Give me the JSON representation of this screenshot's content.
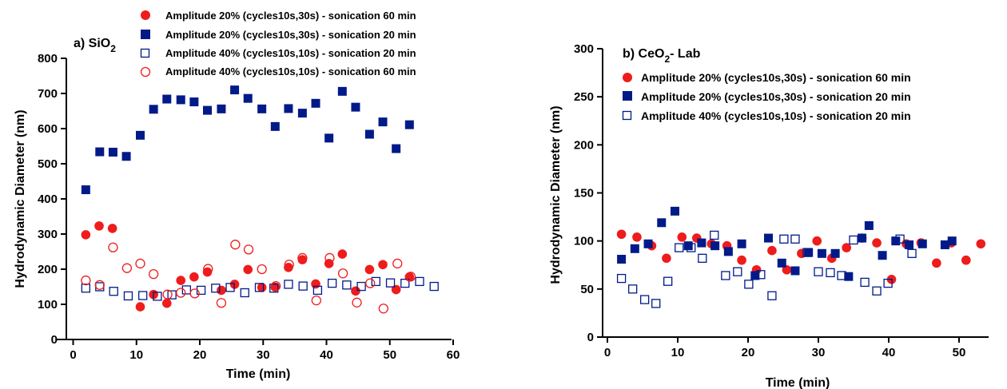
{
  "chart_data": [
    {
      "type": "scatter",
      "title_prefix": "a) SiO",
      "title_sub": "2",
      "title_suffix": "",
      "xlabel": "Time (min)",
      "ylabel": "Hydrodynamic Diameter (nm)",
      "xlim": [
        0,
        60
      ],
      "ylim": [
        0,
        800
      ],
      "xticks": [
        0,
        10,
        20,
        30,
        40,
        50,
        60
      ],
      "yticks": [
        0,
        100,
        200,
        300,
        400,
        500,
        600,
        700,
        800
      ],
      "grid": false,
      "legend_position": "top",
      "series": [
        {
          "name": "Amplitude 20% (cycles10s,30s) - sonication 60 min",
          "marker": "circle-filled",
          "color": "#ee1c1c",
          "points": [
            [
              2,
              298
            ],
            [
              4.1,
              323
            ],
            [
              6.2,
              316
            ],
            [
              10.6,
              93
            ],
            [
              12.7,
              128
            ],
            [
              14.8,
              103
            ],
            [
              17,
              168
            ],
            [
              19.1,
              178
            ],
            [
              21.2,
              192
            ],
            [
              23.4,
              140
            ],
            [
              25.5,
              157
            ],
            [
              27.6,
              199
            ],
            [
              29.8,
              148
            ],
            [
              31.9,
              149
            ],
            [
              34,
              205
            ],
            [
              36.2,
              227
            ],
            [
              38.3,
              158
            ],
            [
              40.4,
              216
            ],
            [
              42.5,
              243
            ],
            [
              44.6,
              138
            ],
            [
              46.8,
              199
            ],
            [
              48.9,
              213
            ],
            [
              51,
              142
            ],
            [
              53.1,
              178
            ]
          ]
        },
        {
          "name": "Amplitude 20% (cycles10s,30s) - sonication 20 min",
          "marker": "square-filled",
          "color": "#001a88",
          "points": [
            [
              2,
              426
            ],
            [
              4.2,
              534
            ],
            [
              6.3,
              533
            ],
            [
              8.4,
              521
            ],
            [
              10.6,
              581
            ],
            [
              12.7,
              655
            ],
            [
              14.8,
              684
            ],
            [
              17,
              682
            ],
            [
              19.1,
              676
            ],
            [
              21.2,
              652
            ],
            [
              23.4,
              656
            ],
            [
              25.5,
              710
            ],
            [
              27.6,
              686
            ],
            [
              29.8,
              656
            ],
            [
              31.9,
              606
            ],
            [
              34,
              657
            ],
            [
              36.2,
              644
            ],
            [
              38.3,
              672
            ],
            [
              40.4,
              573
            ],
            [
              42.5,
              706
            ],
            [
              44.6,
              661
            ],
            [
              46.8,
              584
            ],
            [
              48.9,
              619
            ],
            [
              51,
              543
            ],
            [
              53.1,
              611
            ]
          ]
        },
        {
          "name": "Amplitude 40% (cycles10s,10s) - sonication 20 min",
          "marker": "square-open",
          "color": "#001a88",
          "points": [
            [
              2,
              146
            ],
            [
              4.2,
              150
            ],
            [
              6.4,
              137
            ],
            [
              8.7,
              124
            ],
            [
              11,
              125
            ],
            [
              13.3,
              123
            ],
            [
              15.6,
              127
            ],
            [
              17.9,
              141
            ],
            [
              20.2,
              140
            ],
            [
              22.5,
              146
            ],
            [
              24.8,
              148
            ],
            [
              27.1,
              133
            ],
            [
              29.4,
              148
            ],
            [
              31.7,
              146
            ],
            [
              34,
              157
            ],
            [
              36.3,
              152
            ],
            [
              38.6,
              140
            ],
            [
              40.9,
              160
            ],
            [
              43.2,
              155
            ],
            [
              45.5,
              151
            ],
            [
              47.8,
              165
            ],
            [
              50.1,
              161
            ],
            [
              52.4,
              160
            ],
            [
              54.7,
              165
            ],
            [
              57,
              151
            ]
          ]
        },
        {
          "name": "Amplitude 40% (cycles10s,10s) - sonication 60 min",
          "marker": "circle-open",
          "color": "#ee1c1c",
          "points": [
            [
              2,
              168
            ],
            [
              4.2,
              155
            ],
            [
              6.3,
              262
            ],
            [
              8.5,
              203
            ],
            [
              10.6,
              216
            ],
            [
              12.7,
              186
            ],
            [
              14.9,
              128
            ],
            [
              17,
              133
            ],
            [
              19.2,
              131
            ],
            [
              21.3,
              201
            ],
            [
              23.4,
              104
            ],
            [
              25.6,
              270
            ],
            [
              27.7,
              256
            ],
            [
              29.8,
              200
            ],
            [
              32,
              152
            ],
            [
              34.1,
              213
            ],
            [
              36.2,
              232
            ],
            [
              38.4,
              111
            ],
            [
              40.5,
              232
            ],
            [
              42.6,
              188
            ],
            [
              44.8,
              105
            ],
            [
              46.9,
              160
            ],
            [
              49,
              88
            ],
            [
              51.2,
              216
            ],
            [
              53.3,
              179
            ]
          ]
        }
      ]
    },
    {
      "type": "scatter",
      "title_prefix": "b) CeO",
      "title_sub": "2",
      "title_suffix": "- Lab",
      "xlabel": "Time (min)",
      "ylabel": "Hydrodynamic Diameter (nm)",
      "xlim": [
        -5,
        55
      ],
      "ylim": [
        0,
        300
      ],
      "xticks": [
        0,
        10,
        20,
        30,
        40,
        50
      ],
      "yticks": [
        0,
        50,
        100,
        150,
        200,
        250,
        300
      ],
      "grid": false,
      "legend_position": "top",
      "series": [
        {
          "name": "Amplitude 20% (cycles10s,30s) - sonication 60 min",
          "marker": "circle-filled",
          "color": "#ee1c1c",
          "points": [
            [
              2,
              107
            ],
            [
              4.2,
              104
            ],
            [
              6.3,
              95
            ],
            [
              8.4,
              82
            ],
            [
              10.6,
              104
            ],
            [
              12.7,
              103
            ],
            [
              14.8,
              97
            ],
            [
              17,
              95
            ],
            [
              19.1,
              80
            ],
            [
              21.2,
              70
            ],
            [
              23.4,
              90
            ],
            [
              25.5,
              70
            ],
            [
              27.6,
              87
            ],
            [
              29.8,
              100
            ],
            [
              31.9,
              82
            ],
            [
              34,
              93
            ],
            [
              36.2,
              103
            ],
            [
              38.3,
              98
            ],
            [
              40.4,
              60
            ],
            [
              42.5,
              97
            ],
            [
              44.6,
              98
            ],
            [
              46.8,
              77
            ],
            [
              48.9,
              98
            ],
            [
              51,
              80
            ],
            [
              53.1,
              97
            ]
          ]
        },
        {
          "name": "Amplitude 20% (cycles10s,30s) - sonication 20 min",
          "marker": "square-filled",
          "color": "#001a88",
          "points": [
            [
              2,
              81
            ],
            [
              3.9,
              92
            ],
            [
              5.8,
              97
            ],
            [
              7.7,
              119
            ],
            [
              9.6,
              131
            ],
            [
              11.5,
              95
            ],
            [
              13.4,
              98
            ],
            [
              15.3,
              95
            ],
            [
              17.2,
              89
            ],
            [
              19.1,
              97
            ],
            [
              21,
              64
            ],
            [
              22.9,
              103
            ],
            [
              24.8,
              77
            ],
            [
              26.7,
              69
            ],
            [
              28.6,
              88
            ],
            [
              30.5,
              87
            ],
            [
              32.4,
              87
            ],
            [
              34.3,
              63
            ],
            [
              36.2,
              103
            ],
            [
              37.2,
              116
            ],
            [
              39.1,
              85
            ],
            [
              41,
              100
            ],
            [
              42.9,
              96
            ],
            [
              44.8,
              97
            ],
            [
              48,
              96
            ],
            [
              49,
              100
            ]
          ]
        },
        {
          "name": "Amplitude 40% (cycles10s,10s) - sonication 20 min",
          "marker": "square-open",
          "color": "#001a88",
          "points": [
            [
              2,
              61
            ],
            [
              3.6,
              50
            ],
            [
              5.3,
              39
            ],
            [
              6.9,
              35
            ],
            [
              8.6,
              58
            ],
            [
              10.2,
              93
            ],
            [
              11.9,
              93
            ],
            [
              13.5,
              82
            ],
            [
              15.2,
              106
            ],
            [
              16.8,
              64
            ],
            [
              18.5,
              68
            ],
            [
              20.1,
              55
            ],
            [
              21.8,
              65
            ],
            [
              23.4,
              43
            ],
            [
              25.1,
              102
            ],
            [
              26.7,
              102
            ],
            [
              28.4,
              88
            ],
            [
              30,
              68
            ],
            [
              31.7,
              67
            ],
            [
              33.3,
              64
            ],
            [
              35,
              101
            ],
            [
              36.6,
              57
            ],
            [
              38.3,
              48
            ],
            [
              39.9,
              56
            ],
            [
              41.6,
              102
            ],
            [
              43.3,
              87
            ]
          ]
        }
      ]
    }
  ]
}
